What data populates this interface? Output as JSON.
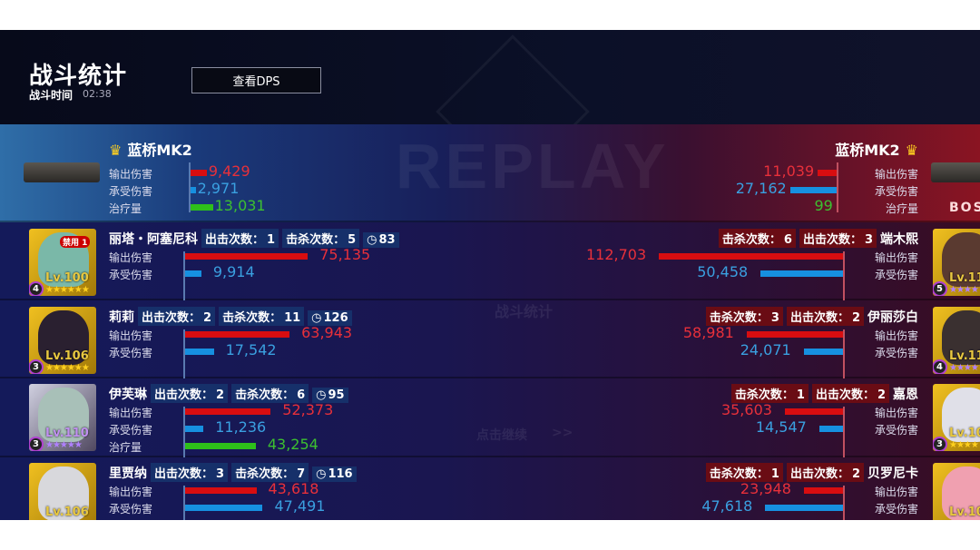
{
  "header": {
    "title": "战斗统计",
    "time_label": "战斗时间",
    "time_value": "02:38",
    "dps_button": "查看DPS",
    "watermark": "REPLAY"
  },
  "overlay": {
    "faint_title": "战斗统计",
    "continue_hint": "点击继续",
    "continue_arrow": ">>"
  },
  "labels": {
    "damage": "输出伤害",
    "taken": "承受伤害",
    "heal": "治疗量",
    "sorties": "出击次数：",
    "kills": "击杀次数："
  },
  "colors": {
    "damage": "#d80d10",
    "taken": "#1690e0",
    "heal": "#2ec01a"
  },
  "left": {
    "boss": {
      "name": "蓝桥MK2",
      "icon": "crown-icon",
      "damage": 9429,
      "damage_text": "9,429",
      "taken": 2971,
      "taken_text": "2,971",
      "heal": 13031,
      "heal_text": "13,031"
    },
    "heroes": [
      {
        "name": "丽塔・阿塞尼科",
        "sorties": "1",
        "kills": "5",
        "time": "83",
        "level": "Lv.100",
        "rank": "4",
        "stars": "★★★★★★",
        "star_color": "gold",
        "bg": "gold",
        "ban": "禁用 1",
        "damage": 75135,
        "damage_text": "75,135",
        "taken": 9914,
        "taken_text": "9,914"
      },
      {
        "name": "莉莉",
        "sorties": "2",
        "kills": "11",
        "time": "126",
        "level": "Lv.106",
        "rank": "3",
        "stars": "★★★★★★",
        "star_color": "gold",
        "bg": "gold",
        "damage": 63943,
        "damage_text": "63,943",
        "taken": 17542,
        "taken_text": "17,542"
      },
      {
        "name": "伊芙琳",
        "sorties": "2",
        "kills": "6",
        "time": "95",
        "level": "Lv.110",
        "rank": "3",
        "stars": "★★★★★",
        "star_color": "purple",
        "bg": "purple",
        "damage": 52373,
        "damage_text": "52,373",
        "taken": 11236,
        "taken_text": "11,236",
        "heal": 43254,
        "heal_text": "43,254"
      },
      {
        "name": "里贾纳",
        "sorties": "3",
        "kills": "7",
        "time": "116",
        "level": "Lv.106",
        "rank": "",
        "stars": "",
        "star_color": "gold",
        "bg": "gold",
        "damage": 43618,
        "damage_text": "43,618",
        "taken": 47491,
        "taken_text": "47,491"
      }
    ]
  },
  "right": {
    "boss": {
      "name": "蓝桥MK2",
      "icon": "crown-icon",
      "tag": "BOSS",
      "damage": 11039,
      "damage_text": "11,039",
      "taken": 27162,
      "taken_text": "27,162",
      "heal": 99,
      "heal_text": "99"
    },
    "heroes": [
      {
        "name": "端木熙",
        "kills": "6",
        "sorties": "3",
        "level": "Lv.11",
        "rank": "5",
        "stars": "★★★★",
        "star_color": "purple",
        "bg": "gold",
        "damage": 112703,
        "damage_text": "112,703",
        "taken": 50458,
        "taken_text": "50,458"
      },
      {
        "name": "伊丽莎白",
        "kills": "3",
        "sorties": "2",
        "level": "Lv.11",
        "rank": "4",
        "stars": "★★★★",
        "star_color": "purple",
        "bg": "gold",
        "damage": 58981,
        "damage_text": "58,981",
        "taken": 24071,
        "taken_text": "24,071"
      },
      {
        "name": "嘉恩",
        "kills": "1",
        "sorties": "2",
        "level": "Lv.10",
        "rank": "3",
        "stars": "★★★★",
        "star_color": "gold",
        "bg": "gold",
        "damage": 35603,
        "damage_text": "35,603",
        "taken": 14547,
        "taken_text": "14,547"
      },
      {
        "name": "贝罗尼卡",
        "kills": "1",
        "sorties": "2",
        "level": "Lv.10",
        "rank": "",
        "stars": "",
        "star_color": "gold",
        "bg": "gold",
        "damage": 23948,
        "damage_text": "23,948",
        "taken": 47618,
        "taken_text": "47,618"
      }
    ]
  }
}
